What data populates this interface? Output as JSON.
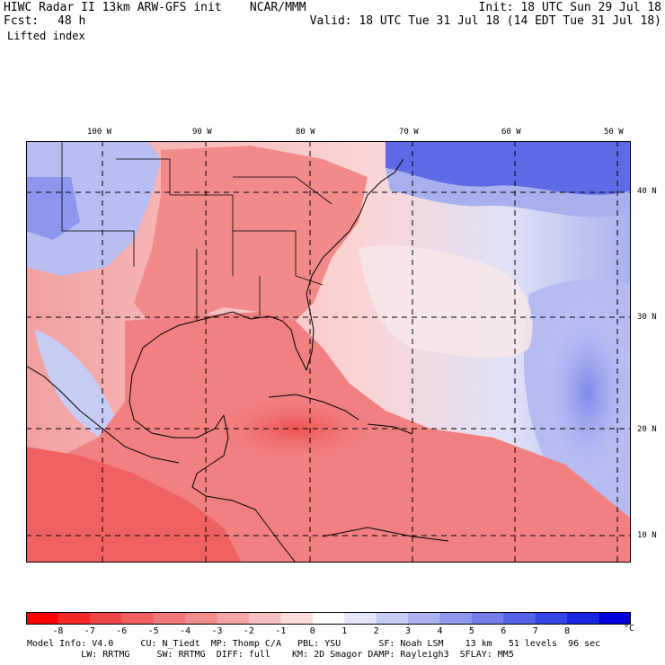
{
  "header": {
    "title_left": "HIWC Radar II 13km ARW-GFS init    NCAR/MMM",
    "init": "Init: 18 UTC Sun 29 Jul 18",
    "fcst_label": "Fcst:",
    "fcst_value": "48 h",
    "valid": "Valid: 18 UTC Tue 31 Jul 18 (14 EDT Tue 31 Jul 18)",
    "field": "Lifted index"
  },
  "map": {
    "lon_labels": [
      "100 W",
      "90 W",
      "80 W",
      "70 W",
      "60 W",
      "50 W"
    ],
    "lat_labels": [
      "40 N",
      "30 N",
      "20 N",
      "10 N"
    ],
    "colors": {
      "border": "#000000",
      "grid": "#000000",
      "neutral": "#ffffff"
    }
  },
  "colorbar": {
    "ticks": [
      "-8",
      "-7",
      "-6",
      "-5",
      "-4",
      "-3",
      "-2",
      "-1",
      "0",
      "1",
      "2",
      "3",
      "4",
      "5",
      "6",
      "7",
      "8"
    ],
    "unit": "°C",
    "colors": [
      "#ff0000",
      "#f52828",
      "#f04646",
      "#f06060",
      "#f07878",
      "#f08c8c",
      "#f5a5a5",
      "#f8c0c0",
      "#fddcdc",
      "#ffffff",
      "#e4e6fa",
      "#c8cdf5",
      "#acb2f2",
      "#8f98ef",
      "#737eeb",
      "#5662e8",
      "#3845e5",
      "#1a26e0",
      "#0000dc"
    ]
  },
  "footer": {
    "line1": "Model Info: V4.0     CU: N_Tiedt  MP: Thomp C/A   PBL: YSU       SF: Noah LSM    13 km   51 levels  96 sec",
    "line2": "          LW: RRTMG     SW: RRTMG  DIFF: full    KM: 2D Smagor DAMP: Rayleigh3  SFLAY: MM5"
  }
}
